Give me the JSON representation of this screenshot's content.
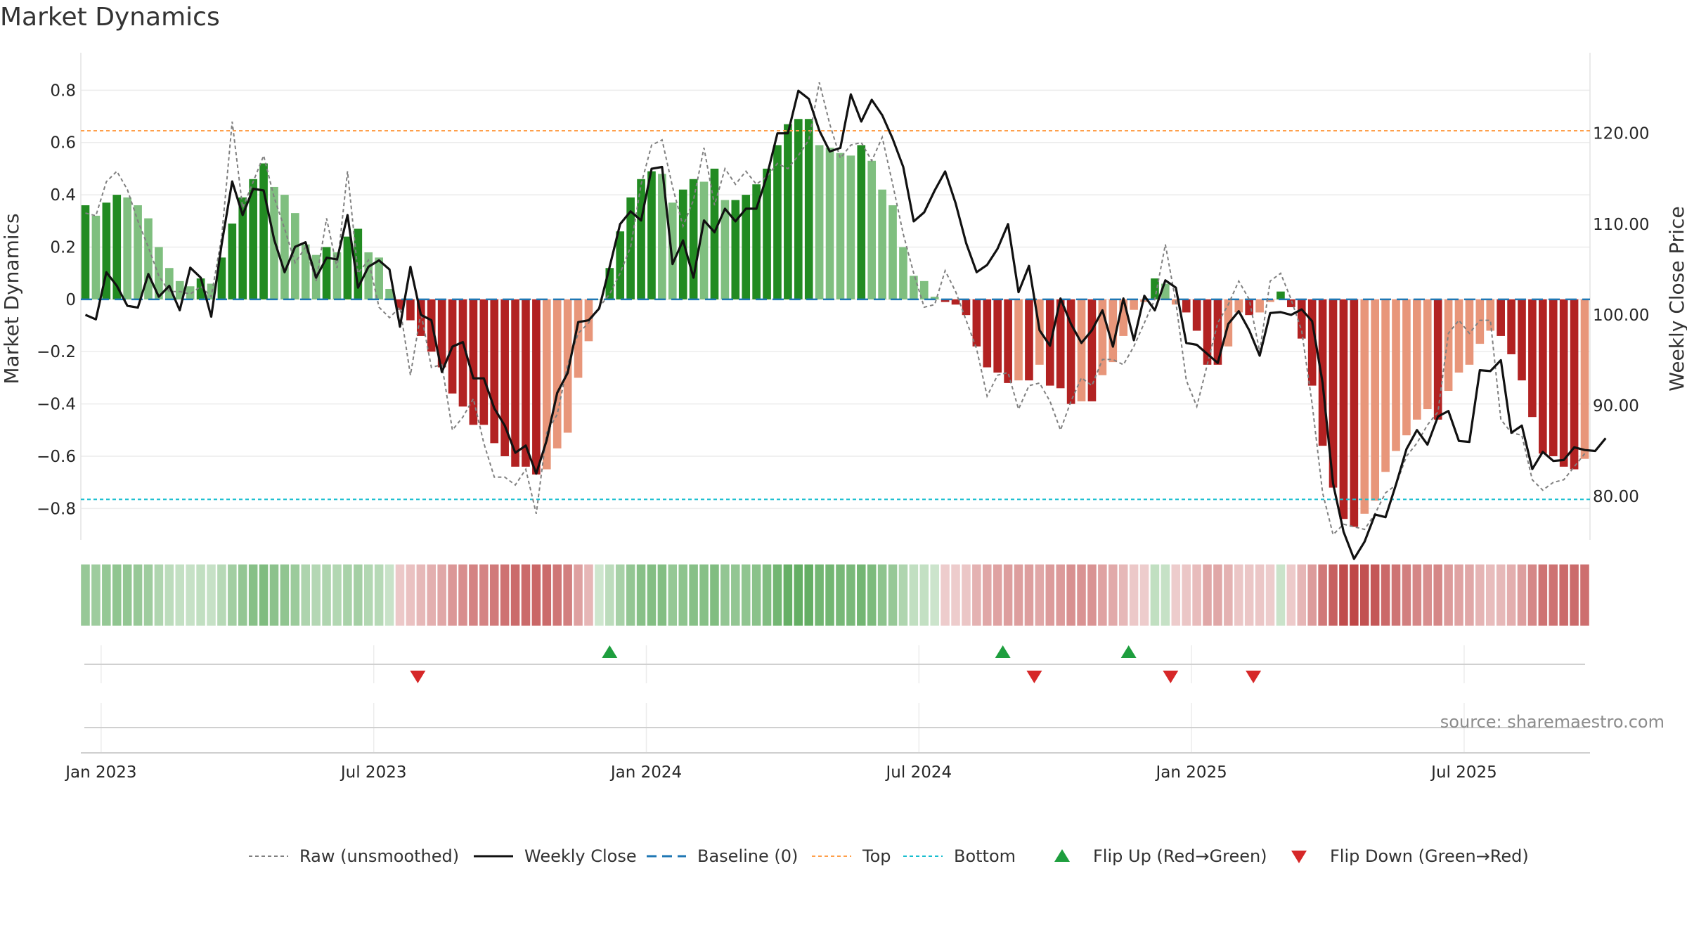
{
  "chart_data": {
    "type": "bar",
    "title": "Market Dynamics",
    "ylabel_left": "Market Dynamics",
    "ylabel_right": "Weekly Close Price",
    "ylim_left": [
      -0.92,
      0.93
    ],
    "ylim_right": [
      75.2,
      128.5
    ],
    "yticks_left": [
      {
        "v": 0.8,
        "label": "0.8"
      },
      {
        "v": 0.6,
        "label": "0.6"
      },
      {
        "v": 0.4,
        "label": "0.4"
      },
      {
        "v": 0.2,
        "label": "0.2"
      },
      {
        "v": 0,
        "label": "0"
      },
      {
        "v": -0.2,
        "label": "−0.2"
      },
      {
        "v": -0.4,
        "label": "−0.4"
      },
      {
        "v": -0.6,
        "label": "−0.6"
      },
      {
        "v": -0.8,
        "label": "−0.8"
      }
    ],
    "yticks_right": [
      {
        "v": 120,
        "label": "120.00"
      },
      {
        "v": 110,
        "label": "110.00"
      },
      {
        "v": 100,
        "label": "100.00"
      },
      {
        "v": 90,
        "label": "90.00"
      },
      {
        "v": 80,
        "label": "80.00"
      }
    ],
    "xticks": [
      {
        "week": 1.5,
        "label": "Jan 2023"
      },
      {
        "week": 27.5,
        "label": "Jul 2023"
      },
      {
        "week": 53.5,
        "label": "Jan 2024"
      },
      {
        "week": 79.5,
        "label": "Jul 2024"
      },
      {
        "week": 105.5,
        "label": "Jan 2025"
      },
      {
        "week": 131.5,
        "label": "Jul 2025"
      }
    ],
    "top_level": 0.645,
    "bottom_level": -0.765,
    "baseline": 0,
    "x_start": "2022-12-26",
    "x_interval": "weekly",
    "smoothed_values": [
      0.36,
      0.32,
      0.37,
      0.4,
      0.39,
      0.36,
      0.31,
      0.2,
      0.12,
      0.07,
      0.05,
      0.08,
      0.06,
      0.16,
      0.29,
      0.39,
      0.46,
      0.52,
      0.43,
      0.4,
      0.33,
      0.21,
      0.17,
      0.2,
      0.18,
      0.24,
      0.27,
      0.18,
      0.16,
      0.04,
      -0.04,
      -0.08,
      -0.14,
      -0.2,
      -0.26,
      -0.36,
      -0.41,
      -0.48,
      -0.48,
      -0.55,
      -0.6,
      -0.64,
      -0.64,
      -0.67,
      -0.65,
      -0.57,
      -0.51,
      -0.3,
      -0.16,
      0.0,
      0.12,
      0.26,
      0.39,
      0.46,
      0.49,
      0.48,
      0.37,
      0.42,
      0.46,
      0.45,
      0.5,
      0.38,
      0.38,
      0.4,
      0.44,
      0.5,
      0.59,
      0.67,
      0.69,
      0.69,
      0.59,
      0.58,
      0.56,
      0.55,
      0.59,
      0.53,
      0.42,
      0.36,
      0.2,
      0.09,
      0.07,
      0.01,
      -0.01,
      -0.02,
      -0.06,
      -0.18,
      -0.26,
      -0.28,
      -0.32,
      -0.31,
      -0.31,
      -0.25,
      -0.33,
      -0.34,
      -0.4,
      -0.39,
      -0.39,
      -0.29,
      -0.24,
      -0.14,
      -0.04,
      -0.01,
      0.08,
      0.06,
      -0.02,
      -0.05,
      -0.12,
      -0.25,
      -0.25,
      -0.18,
      -0.05,
      -0.06,
      -0.05,
      -0.01,
      0.03,
      -0.03,
      -0.15,
      -0.33,
      -0.56,
      -0.72,
      -0.84,
      -0.87,
      -0.82,
      -0.77,
      -0.66,
      -0.58,
      -0.52,
      -0.46,
      -0.42,
      -0.46,
      -0.35,
      -0.28,
      -0.25,
      -0.17,
      -0.12,
      -0.14,
      -0.21,
      -0.31,
      -0.45,
      -0.59,
      -0.6,
      -0.64,
      -0.65,
      -0.61
    ],
    "raw_values": [
      0.33,
      0.32,
      0.45,
      0.49,
      0.42,
      0.3,
      0.2,
      0.09,
      0.03,
      0.03,
      0.02,
      0.05,
      0.01,
      0.24,
      0.68,
      0.35,
      0.45,
      0.55,
      0.39,
      0.27,
      0.14,
      0.2,
      0.07,
      0.31,
      0.12,
      0.49,
      0.1,
      0.15,
      -0.03,
      -0.07,
      -0.03,
      -0.29,
      -0.05,
      -0.26,
      -0.25,
      -0.5,
      -0.45,
      -0.38,
      -0.55,
      -0.68,
      -0.68,
      -0.71,
      -0.65,
      -0.82,
      -0.51,
      -0.44,
      -0.25,
      -0.13,
      -0.09,
      -0.03,
      0.02,
      0.1,
      0.2,
      0.44,
      0.59,
      0.61,
      0.43,
      0.28,
      0.38,
      0.58,
      0.36,
      0.5,
      0.44,
      0.49,
      0.44,
      0.47,
      0.52,
      0.5,
      0.55,
      0.61,
      0.83,
      0.67,
      0.54,
      0.59,
      0.6,
      0.53,
      0.62,
      0.44,
      0.25,
      0.1,
      -0.03,
      -0.02,
      0.11,
      0.03,
      -0.08,
      -0.19,
      -0.37,
      -0.29,
      -0.28,
      -0.42,
      -0.33,
      -0.32,
      -0.39,
      -0.5,
      -0.39,
      -0.3,
      -0.33,
      -0.23,
      -0.23,
      -0.25,
      -0.18,
      -0.09,
      0.0,
      0.21,
      -0.01,
      -0.31,
      -0.41,
      -0.25,
      -0.09,
      -0.02,
      0.07,
      0.0,
      -0.2,
      0.07,
      0.1,
      0.0,
      -0.12,
      -0.4,
      -0.74,
      -0.9,
      -0.86,
      -0.87,
      -0.88,
      -0.82,
      -0.74,
      -0.71,
      -0.6,
      -0.55,
      -0.48,
      -0.43,
      -0.13,
      -0.08,
      -0.13,
      -0.08,
      -0.08,
      -0.46,
      -0.51,
      -0.52,
      -0.69,
      -0.73,
      -0.7,
      -0.69,
      -0.64,
      -0.59
    ],
    "close_values": [
      100.0,
      99.5,
      104.7,
      103.2,
      101.0,
      100.8,
      104.5,
      102.0,
      103.2,
      100.5,
      105.2,
      104.1,
      99.8,
      107.8,
      114.7,
      111.0,
      113.9,
      113.7,
      108.3,
      104.7,
      107.5,
      108.0,
      104.1,
      106.3,
      106.1,
      111.0,
      103.0,
      105.3,
      106.0,
      105.0,
      98.7,
      105.3,
      100.0,
      99.4,
      93.7,
      96.5,
      97.0,
      93.0,
      93.0,
      89.7,
      87.8,
      84.8,
      85.6,
      82.5,
      86.2,
      91.4,
      93.6,
      99.2,
      99.4,
      100.7,
      105.3,
      110.0,
      111.4,
      110.4,
      116.1,
      116.3,
      105.6,
      108.2,
      104.1,
      110.4,
      109.1,
      111.7,
      110.3,
      111.7,
      111.7,
      115.3,
      120.0,
      120.0,
      124.7,
      123.8,
      120.3,
      118.0,
      118.4,
      124.3,
      121.3,
      123.7,
      122.0,
      119.4,
      116.3,
      110.3,
      111.3,
      113.7,
      115.8,
      112.3,
      107.9,
      104.7,
      105.5,
      107.3,
      110.0,
      102.5,
      105.4,
      98.3,
      96.6,
      101.8,
      99.0,
      96.9,
      98.3,
      100.5,
      96.5,
      101.8,
      97.2,
      102.1,
      100.5,
      103.8,
      103.0,
      96.9,
      96.7,
      95.7,
      94.7,
      99.0,
      100.4,
      98.3,
      95.5,
      100.2,
      100.3,
      100.0,
      100.6,
      99.3,
      92.5,
      81.4,
      76.1,
      73.1,
      75.0,
      78.0,
      77.7,
      81.3,
      85.2,
      87.3,
      85.7,
      88.8,
      89.4,
      86.1,
      86.0,
      93.9,
      93.8,
      95.0,
      87.0,
      87.8,
      83.0,
      84.9,
      83.9,
      84.0,
      85.4,
      85.1,
      85.0,
      86.4
    ],
    "sentiment_strip": "one shaded tile per week; green when the smoothed value is positive, red when negative, darker with larger magnitude",
    "flip_up_weeks": [
      50,
      87.5,
      99.5
    ],
    "flip_down_weeks": [
      31.7,
      90.5,
      103.5,
      111.4
    ],
    "source_text": "source: sharemaestro.com",
    "legend": [
      {
        "label": "Raw (unsmoothed)",
        "kind": "dash-gray"
      },
      {
        "label": "Weekly Close",
        "kind": "solid-black"
      },
      {
        "label": "Baseline (0)",
        "kind": "dash-blue"
      },
      {
        "label": "Top",
        "kind": "dash-orange"
      },
      {
        "label": "Bottom",
        "kind": "dash-cyan"
      },
      {
        "label": "Flip Up (Red→Green)",
        "kind": "up-triangle"
      },
      {
        "label": "Flip Down (Green→Red)",
        "kind": "down-triangle"
      }
    ],
    "colors": {
      "pos_strong": "#228b22",
      "pos_weak": "#7fbf7f",
      "neg_strong": "#b22222",
      "neg_weak": "#e8967a",
      "raw": "#808080",
      "close": "#111111",
      "baseline": "#1f77b4",
      "top": "#ff9f4a",
      "bottom": "#17becf",
      "flip_up": "#1e9e3e",
      "flip_down": "#d62728"
    }
  }
}
